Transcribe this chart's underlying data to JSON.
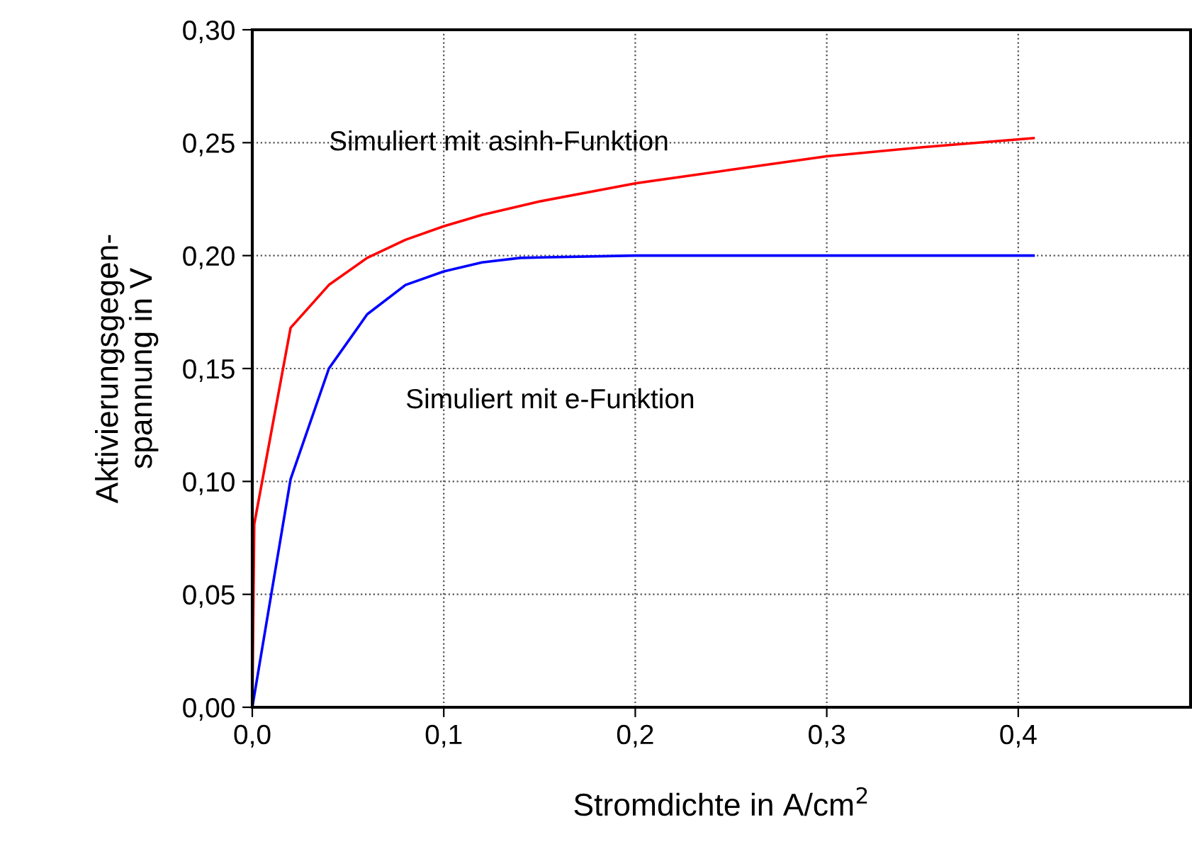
{
  "chart_data": {
    "type": "line",
    "xlabel": "Stromdichte in A/cm$^{2}$",
    "ylabel": "Aktivierungsgegen-\nspannung in V",
    "xlim": [
      0,
      0.49
    ],
    "xticks": [
      {
        "value": 0,
        "label": "0,0"
      },
      {
        "value": 0.1,
        "label": "0,1"
      },
      {
        "value": 0.2,
        "label": "0,2"
      },
      {
        "value": 0.3,
        "label": "0,3"
      },
      {
        "value": 0.4,
        "label": "0,4"
      }
    ],
    "ylim": [
      0,
      0.3
    ],
    "yticks": [
      {
        "value": 0,
        "label": "0,00"
      },
      {
        "value": 0.05,
        "label": "0,05"
      },
      {
        "value": 0.1,
        "label": "0,10"
      },
      {
        "value": 0.15,
        "label": "0,15"
      },
      {
        "value": 0.2,
        "label": "0,20"
      },
      {
        "value": 0.25,
        "label": "0,25"
      },
      {
        "value": 0.3,
        "label": "0,30"
      }
    ],
    "grid": true,
    "marker": "none",
    "series": [
      {
        "name": "Simuliert mit asinh-Funktion",
        "color": "#ff0000",
        "x": [
          0,
          0.001,
          0.02,
          0.04,
          0.06,
          0.08,
          0.1,
          0.12,
          0.15,
          0.2,
          0.25,
          0.3,
          0.35,
          0.408
        ],
        "values": [
          0,
          0.081,
          0.168,
          0.187,
          0.199,
          0.207,
          0.213,
          0.218,
          0.224,
          0.232,
          0.238,
          0.244,
          0.248,
          0.252
        ]
      },
      {
        "name": "Simuliert mit e-Funktion",
        "color": "#0000ff",
        "x": [
          0,
          0.02,
          0.04,
          0.06,
          0.08,
          0.1,
          0.12,
          0.14,
          0.2,
          0.408
        ],
        "values": [
          0,
          0.101,
          0.15,
          0.174,
          0.187,
          0.193,
          0.197,
          0.199,
          0.2,
          0.2
        ]
      }
    ]
  }
}
